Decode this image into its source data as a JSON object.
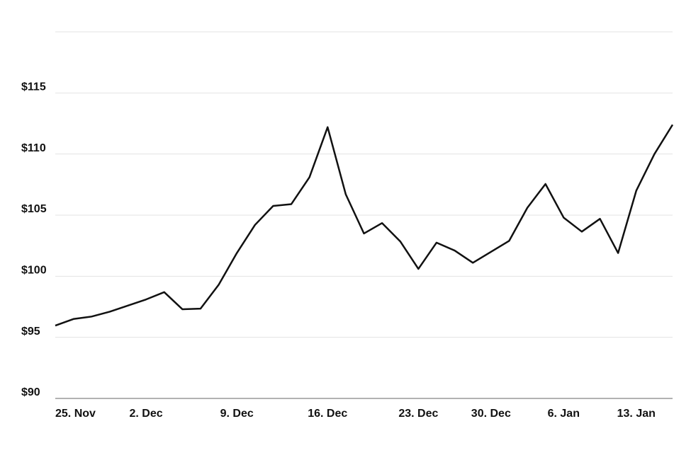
{
  "chart_data": {
    "type": "line",
    "categories": [
      "25. Nov",
      null,
      null,
      null,
      null,
      "2. Dec",
      null,
      null,
      null,
      null,
      "9. Dec",
      null,
      null,
      null,
      null,
      "16. Dec",
      null,
      null,
      null,
      null,
      "23. Dec",
      null,
      null,
      null,
      "30. Dec",
      null,
      null,
      null,
      "6. Jan",
      null,
      null,
      null,
      "13. Jan",
      null,
      null
    ],
    "values": [
      95.96,
      96.5,
      96.7,
      97.1,
      97.6,
      98.1,
      98.7,
      97.3,
      97.35,
      99.3,
      101.9,
      104.2,
      105.75,
      105.9,
      108.1,
      112.2,
      106.7,
      103.5,
      104.35,
      102.85,
      100.6,
      102.75,
      102.1,
      101.1,
      102.0,
      102.9,
      105.6,
      107.55,
      104.8,
      103.65,
      104.7,
      101.9,
      107.0,
      110.0,
      112.4
    ],
    "color": "#111111",
    "ylim": [
      90,
      120
    ],
    "yticks": [
      {
        "value": 90,
        "label": "$90"
      },
      {
        "value": 95,
        "label": "$95"
      },
      {
        "value": 100,
        "label": "$100"
      },
      {
        "value": 105,
        "label": "$105"
      },
      {
        "value": 110,
        "label": "$110"
      },
      {
        "value": 115,
        "label": "$115"
      }
    ],
    "grid": true
  }
}
